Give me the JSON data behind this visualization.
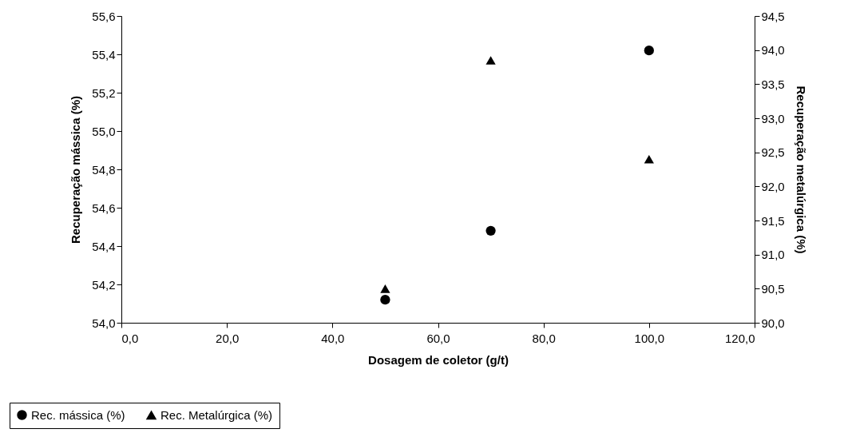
{
  "chart_data": {
    "type": "scatter",
    "xlabel": "Dosagem de coletor (g/t)",
    "ylabel": "Recuperação mássica (%)",
    "y2label": "Recuperação metalúrgica (%)",
    "x": [
      50,
      70,
      100
    ],
    "series": [
      {
        "name": "Rec. mássica (%)",
        "color": "#000000",
        "marker": "circle",
        "values": [
          54.12,
          54.48,
          55.42
        ]
      },
      {
        "name": "Rec. Metalúrgica (%)",
        "color": "#000000",
        "marker": "triangle",
        "axis": "y2",
        "values": [
          90.5,
          93.85,
          92.4
        ]
      }
    ],
    "xlim": [
      0,
      120
    ],
    "xticks": [
      {
        "value": 0,
        "label": "0,0"
      },
      {
        "value": 20,
        "label": "20,0"
      },
      {
        "value": 40,
        "label": "40,0"
      },
      {
        "value": 60,
        "label": "60,0"
      },
      {
        "value": 80,
        "label": "80,0"
      },
      {
        "value": 100,
        "label": "100,0"
      },
      {
        "value": 120,
        "label": "120,0"
      }
    ],
    "ylim": [
      54,
      55.6
    ],
    "yticks": [
      {
        "value": 54,
        "label": "54,0"
      },
      {
        "value": 54.2,
        "label": "54,2"
      },
      {
        "value": 54.4,
        "label": "54,4"
      },
      {
        "value": 54.6,
        "label": "54,6"
      },
      {
        "value": 54.8,
        "label": "54,8"
      },
      {
        "value": 55,
        "label": "55,0"
      },
      {
        "value": 55.2,
        "label": "55,2"
      },
      {
        "value": 55.4,
        "label": "55,4"
      },
      {
        "value": 55.6,
        "label": "55,6"
      }
    ],
    "y2lim": [
      90,
      94.5
    ],
    "y2ticks": [
      {
        "value": 90,
        "label": "90,0"
      },
      {
        "value": 90.5,
        "label": "90,5"
      },
      {
        "value": 91,
        "label": "91,0"
      },
      {
        "value": 91.5,
        "label": "91,5"
      },
      {
        "value": 92,
        "label": "92,0"
      },
      {
        "value": 92.5,
        "label": "92,5"
      },
      {
        "value": 93,
        "label": "93,0"
      },
      {
        "value": 93.5,
        "label": "93,5"
      },
      {
        "value": 94,
        "label": "94,0"
      },
      {
        "value": 94.5,
        "label": "94,5"
      }
    ],
    "grid": false,
    "legend": "bottom left"
  }
}
